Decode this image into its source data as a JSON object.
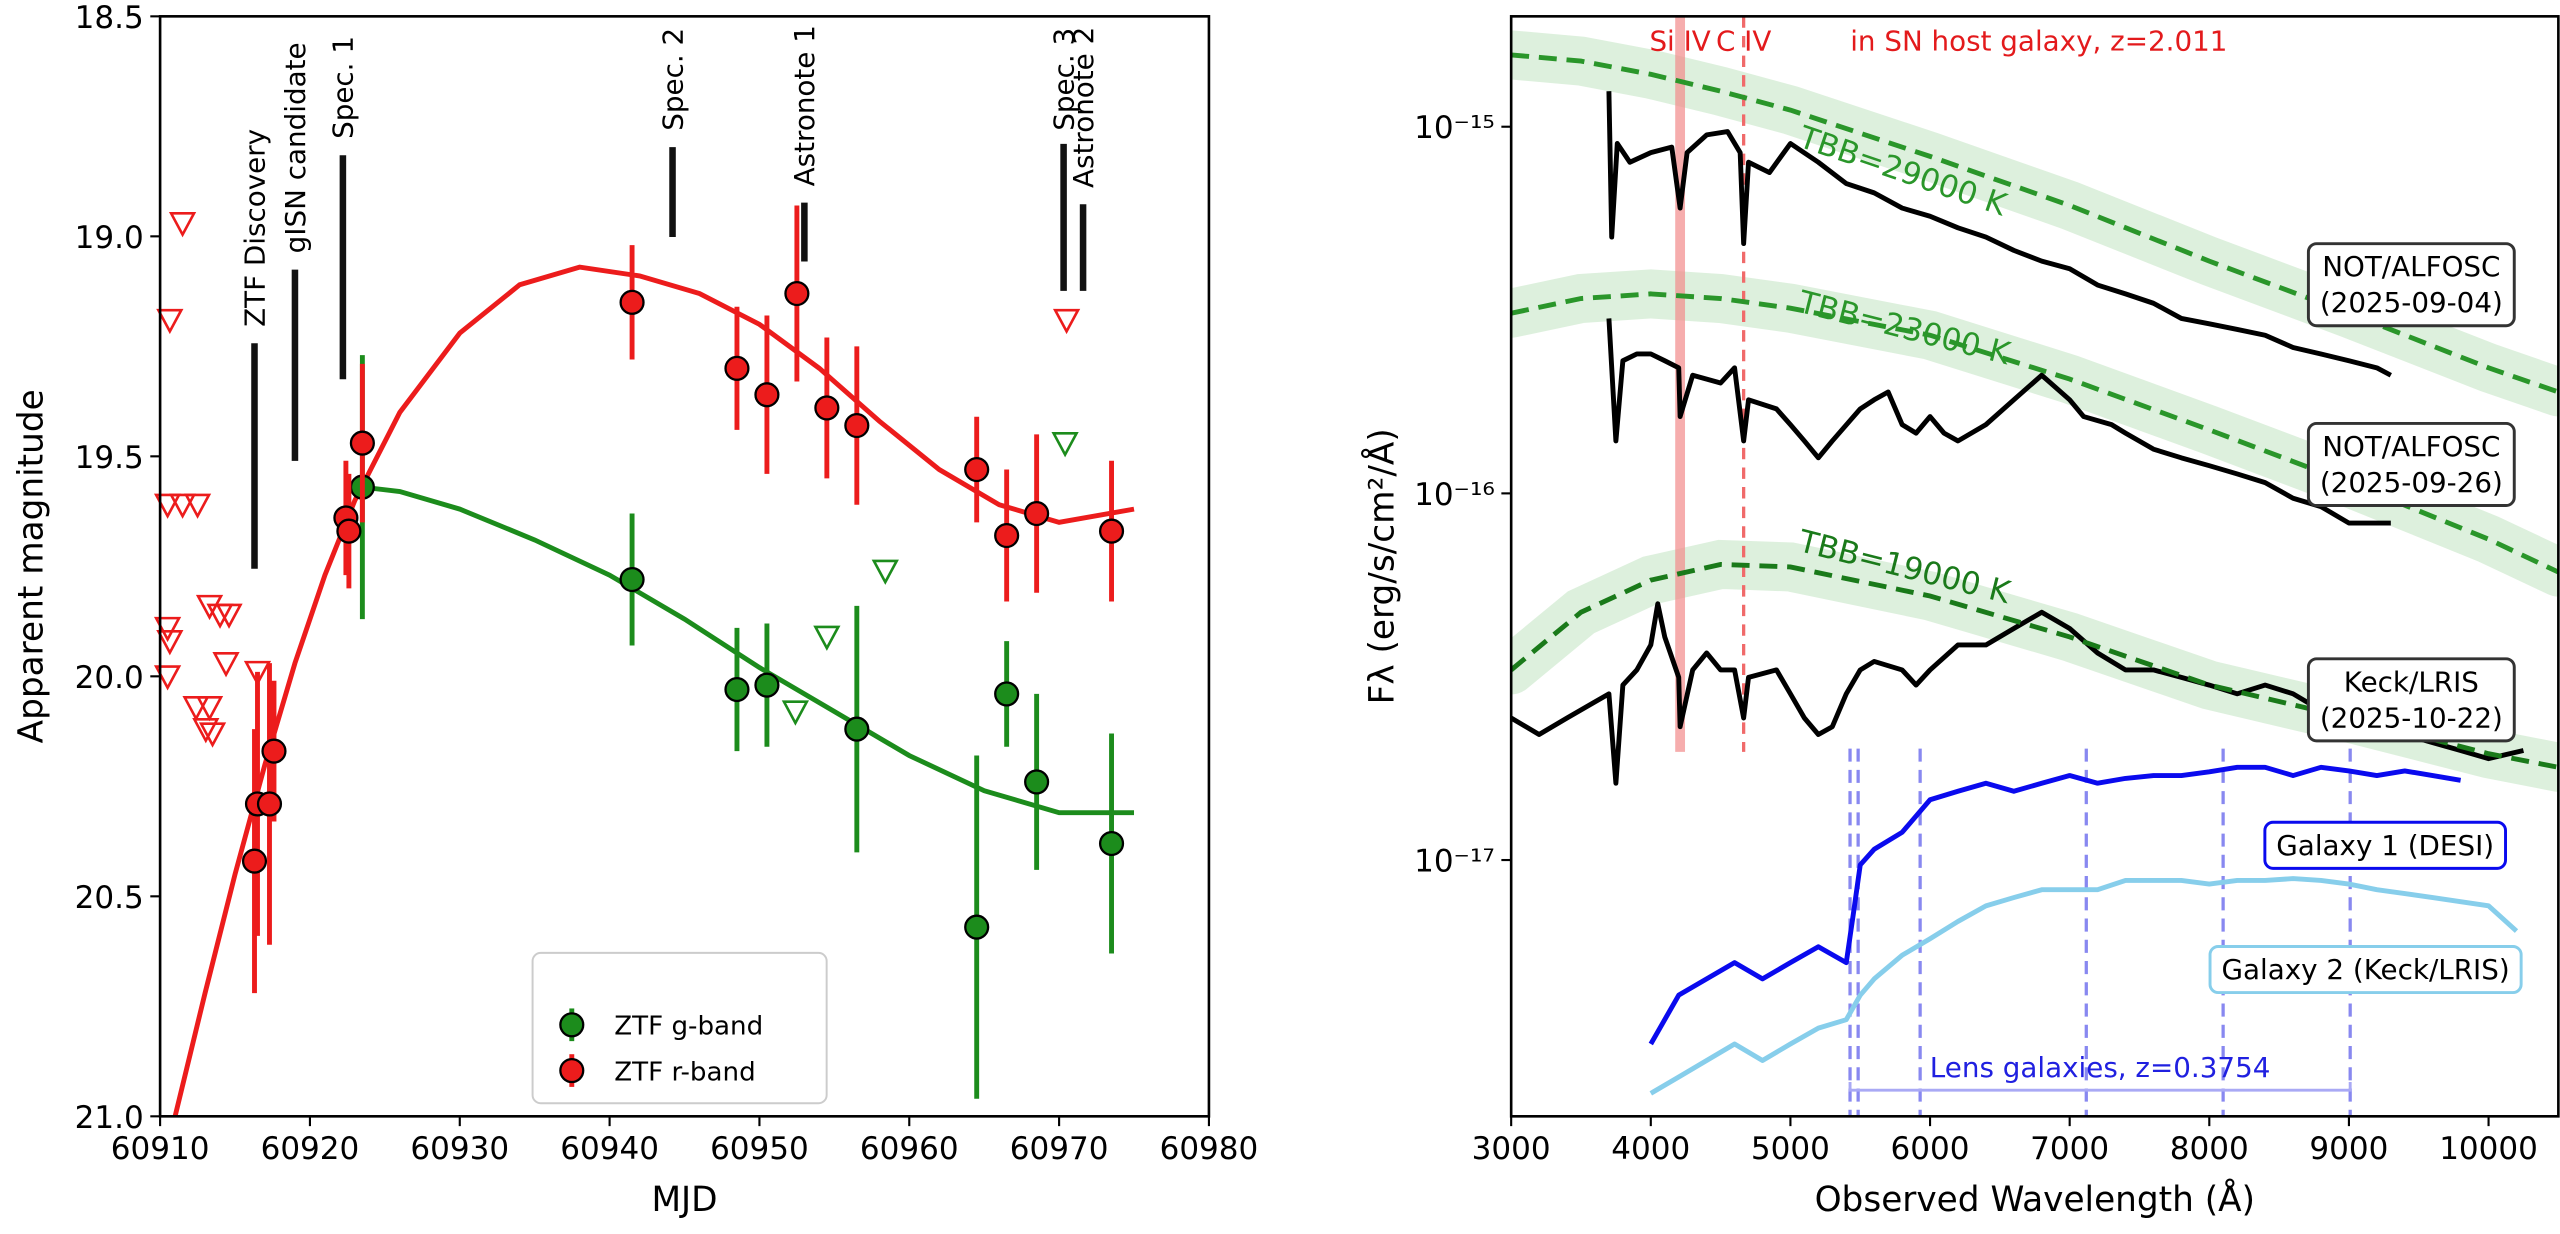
{
  "chart_data": [
    {
      "type": "scatter",
      "xlabel": "MJD",
      "ylabel": "Apparent magnitude",
      "xlim": [
        60910,
        60980
      ],
      "ylim": [
        21,
        18.5
      ],
      "xticks": [
        60910,
        60920,
        60930,
        60940,
        60950,
        60960,
        60970,
        60980
      ],
      "yticks": [
        18.5,
        {
          "value": 19,
          "label": "19.0"
        },
        19.5,
        {
          "value": 20,
          "label": "20.0"
        },
        20.5,
        {
          "value": 21,
          "label": "21.0"
        }
      ],
      "legend": "lower center",
      "series": [
        {
          "name": "ZTF g-band",
          "color": "#1c8c1c",
          "x": [
            60923.5,
            60941.5,
            60948.5,
            60950.5,
            60956.5,
            60964.5,
            60966.5,
            60968.5,
            60973.5
          ],
          "values": [
            19.57,
            19.78,
            20.03,
            20.02,
            20.12,
            20.57,
            20.04,
            20.24,
            20.38
          ],
          "errors": [
            0.3,
            0.15,
            0.14,
            0.14,
            0.28,
            0.39,
            0.12,
            0.2,
            0.25
          ]
        },
        {
          "name": "ZTF r-band",
          "color": "#ec1c1c",
          "x": [
            60916.3,
            60916.5,
            60917.3,
            60917.6,
            60922.4,
            60922.6,
            60923.5,
            60941.5,
            60948.5,
            60950.5,
            60952.5,
            60954.5,
            60956.5,
            60964.5,
            60966.5,
            60968.5,
            60973.5
          ],
          "values": [
            20.42,
            20.29,
            20.29,
            20.17,
            19.64,
            19.67,
            19.47,
            19.15,
            19.3,
            19.36,
            19.13,
            19.39,
            19.43,
            19.53,
            19.68,
            19.63,
            19.67
          ],
          "errors": [
            0.3,
            0.3,
            0.32,
            0.16,
            0.13,
            0.13,
            0.18,
            0.13,
            0.14,
            0.18,
            0.2,
            0.16,
            0.18,
            0.12,
            0.15,
            0.18,
            0.16
          ]
        }
      ],
      "upper_limits": [
        {
          "color": "#1c8c1c",
          "x": [
            60952.4,
            60954.5,
            60958.4,
            60970.4
          ],
          "values": [
            20.08,
            19.91,
            19.76,
            19.47
          ]
        },
        {
          "color": "#ec1c1c",
          "x": [
            60910.65,
            60911.5,
            60910.5,
            60911.5,
            60912.5,
            60910.5,
            60910.65,
            60910.5,
            60913.3,
            60914.0,
            60914.6,
            60914.4,
            60912.4,
            60913.05,
            60913.3,
            60913.5,
            60916.5,
            60970.5
          ],
          "values": [
            19.19,
            18.97,
            19.61,
            19.61,
            19.61,
            19.89,
            19.92,
            20.0,
            19.84,
            19.86,
            19.86,
            19.97,
            20.07,
            20.12,
            20.07,
            20.13,
            19.99,
            19.19
          ]
        }
      ],
      "fits": [
        {
          "color": "#1c8c1c",
          "x": [
            60923.5,
            60926,
            60930,
            60935,
            60940,
            60945,
            60950,
            60955,
            60960,
            60965,
            60970,
            60975
          ],
          "values": [
            19.57,
            19.58,
            19.62,
            19.69,
            19.77,
            19.87,
            19.98,
            20.08,
            20.18,
            20.26,
            20.31,
            20.31
          ]
        },
        {
          "color": "#ec1c1c",
          "x": [
            60911,
            60913,
            60915,
            60917,
            60919,
            60921,
            60923,
            60926,
            60930,
            60934,
            60938,
            60942,
            60946,
            60950,
            60954,
            60958,
            60962,
            60966,
            60970,
            60975
          ],
          "values": [
            21,
            20.72,
            20.45,
            20.2,
            19.97,
            19.77,
            19.6,
            19.4,
            19.22,
            19.11,
            19.07,
            19.09,
            19.13,
            19.2,
            19.3,
            19.42,
            19.53,
            19.61,
            19.65,
            19.62
          ]
        }
      ],
      "annotations": [
        {
          "text": "ZTF Discovery",
          "x": 60916.3
        },
        {
          "text": "gISN candidate",
          "x": 60919
        },
        {
          "text": "Spec. 1",
          "x": 60922.2
        },
        {
          "text": "Spec. 2",
          "x": 60944.2
        },
        {
          "text": "Astronote 1",
          "x": 60953
        },
        {
          "text": "Spec. 3",
          "x": 60970.3
        },
        {
          "text": "Astronote 2",
          "x": 60971.6
        }
      ]
    },
    {
      "type": "line",
      "xlabel": "Observed Wavelength (Å)",
      "ylabel": "Fλ (erg/s/cm²/Å)",
      "xlim": [
        3000,
        10500
      ],
      "ylim": [
        2e-18,
        2e-15
      ],
      "log_y": true,
      "xticks": [
        3000,
        4000,
        5000,
        6000,
        7000,
        8000,
        9000,
        10000
      ],
      "yticks": [
        {
          "value": 1e-17,
          "label": "10⁻¹⁷"
        },
        {
          "value": 1e-16,
          "label": "10⁻¹⁶"
        },
        {
          "value": 1e-15,
          "label": "10⁻¹⁵"
        }
      ],
      "series": [
        {
          "label": [
            "NOT/ALFOSC",
            "(2025-09-04)"
          ],
          "color": "#000000",
          "x": [
            3700,
            3720,
            3760,
            3850,
            4000,
            4150,
            4210,
            4260,
            4400,
            4550,
            4640,
            4665,
            4700,
            4850,
            5000,
            5200,
            5400,
            5600,
            5800,
            6000,
            6200,
            6400,
            6600,
            6800,
            7000,
            7200,
            7400,
            7600,
            7800,
            8000,
            8200,
            8400,
            8600,
            8800,
            9000,
            9200,
            9300
          ],
          "values": [
            1.25e-15,
            5e-16,
            9e-16,
            8e-16,
            8.5e-16,
            8.8e-16,
            6e-16,
            8.5e-16,
            9.5e-16,
            9.7e-16,
            8.5e-16,
            4.8e-16,
            8e-16,
            7.5e-16,
            9e-16,
            8e-16,
            7e-16,
            6.6e-16,
            6e-16,
            5.7e-16,
            5.3e-16,
            5e-16,
            4.6e-16,
            4.3e-16,
            4.1e-16,
            3.7e-16,
            3.5e-16,
            3.3e-16,
            3e-16,
            2.9e-16,
            2.8e-16,
            2.7e-16,
            2.5e-16,
            2.4e-16,
            2.3e-16,
            2.2e-16,
            2.1e-16
          ]
        },
        {
          "label": [
            "NOT/ALFOSC",
            "(2025-09-26)"
          ],
          "color": "#000000",
          "x": [
            3700,
            3750,
            3800,
            3900,
            4000,
            4100,
            4200,
            4210,
            4300,
            4500,
            4600,
            4665,
            4700,
            4900,
            5000,
            5100,
            5200,
            5300,
            5500,
            5600,
            5700,
            5800,
            5900,
            6000,
            6100,
            6200,
            6400,
            6600,
            6800,
            7000,
            7100,
            7300,
            7400,
            7600,
            7800,
            8000,
            8200,
            8400,
            8600,
            8800,
            9000,
            9300
          ],
          "values": [
            3e-16,
            1.39e-16,
            2.3e-16,
            2.4e-16,
            2.4e-16,
            2.3e-16,
            2.2e-16,
            1.62e-16,
            2.1e-16,
            2e-16,
            2.2e-16,
            1.39e-16,
            1.8e-16,
            1.7e-16,
            1.54e-16,
            1.39e-16,
            1.25e-16,
            1.39e-16,
            1.7e-16,
            1.8e-16,
            1.89e-16,
            1.54e-16,
            1.46e-16,
            1.62e-16,
            1.46e-16,
            1.39e-16,
            1.54e-16,
            1.8e-16,
            2.1e-16,
            1.8e-16,
            1.62e-16,
            1.54e-16,
            1.46e-16,
            1.32e-16,
            1.25e-16,
            1.19e-16,
            1.13e-16,
            1.07e-16,
            9.7e-17,
            9.2e-17,
            8.3e-17,
            8.3e-17
          ]
        },
        {
          "label": [
            "Keck/LRIS",
            "(2025-10-22)"
          ],
          "color": "#000000",
          "x": [
            3000,
            3200,
            3400,
            3600,
            3700,
            3750,
            3800,
            3900,
            4000,
            4050,
            4100,
            4200,
            4210,
            4300,
            4400,
            4500,
            4600,
            4665,
            4700,
            4900,
            5000,
            5100,
            5200,
            5300,
            5400,
            5500,
            5600,
            5800,
            5900,
            6000,
            6200,
            6400,
            6600,
            6800,
            7000,
            7200,
            7400,
            7600,
            7800,
            8000,
            8200,
            8400,
            8600,
            8800,
            9000,
            9200,
            9400,
            9600,
            9800,
            10000,
            10250
          ],
          "values": [
            2.44e-17,
            2.2e-17,
            2.44e-17,
            2.7e-17,
            2.84e-17,
            1.62e-17,
            3e-17,
            3.3e-17,
            3.86e-17,
            5e-17,
            4.06e-17,
            3.15e-17,
            2.31e-17,
            3.3e-17,
            3.67e-17,
            3.3e-17,
            3.3e-17,
            2.44e-17,
            3.15e-17,
            3.3e-17,
            2.84e-17,
            2.44e-17,
            2.2e-17,
            2.31e-17,
            2.84e-17,
            3.3e-17,
            3.48e-17,
            3.3e-17,
            3e-17,
            3.3e-17,
            3.86e-17,
            3.86e-17,
            4.28e-17,
            4.74e-17,
            4.28e-17,
            3.67e-17,
            3.3e-17,
            3.3e-17,
            3.15e-17,
            3e-17,
            2.84e-17,
            3e-17,
            2.84e-17,
            2.56e-17,
            2.44e-17,
            2.31e-17,
            2.2e-17,
            2.09e-17,
            1.99e-17,
            1.89e-17,
            1.99e-17
          ]
        },
        {
          "label": [
            "Galaxy 1 (DESI)"
          ],
          "color": "#0a0aee",
          "x": [
            4000,
            4200,
            4400,
            4600,
            4800,
            5000,
            5200,
            5400,
            5450,
            5500,
            5600,
            5800,
            6000,
            6200,
            6400,
            6600,
            6800,
            7000,
            7200,
            7400,
            7600,
            7800,
            8000,
            8200,
            8400,
            8600,
            8800,
            9000,
            9200,
            9400,
            9600,
            9800
          ],
          "values": [
            3.15e-18,
            4.28e-18,
            4.74e-18,
            5.25e-18,
            4.74e-18,
            5.25e-18,
            5.8e-18,
            5.25e-18,
            7.1e-18,
            9.7e-18,
            1.07e-17,
            1.19e-17,
            1.46e-17,
            1.54e-17,
            1.62e-17,
            1.54e-17,
            1.62e-17,
            1.7e-17,
            1.62e-17,
            1.67e-17,
            1.7e-17,
            1.7e-17,
            1.74e-17,
            1.79e-17,
            1.79e-17,
            1.7e-17,
            1.79e-17,
            1.75e-17,
            1.7e-17,
            1.75e-17,
            1.7e-17,
            1.65e-17
          ]
        },
        {
          "label": [
            "Galaxy 2 (Keck/LRIS)"
          ],
          "color": "#87ceeb",
          "x": [
            4000,
            4200,
            4400,
            4600,
            4800,
            5000,
            5200,
            5400,
            5500,
            5600,
            5800,
            6000,
            6200,
            6400,
            6600,
            6800,
            7000,
            7200,
            7400,
            7600,
            7800,
            8000,
            8200,
            8400,
            8600,
            8800,
            9000,
            9200,
            9400,
            9600,
            9800,
            10000,
            10200
          ],
          "values": [
            2.31e-18,
            2.56e-18,
            2.84e-18,
            3.15e-18,
            2.84e-18,
            3.15e-18,
            3.48e-18,
            3.67e-18,
            4.28e-18,
            4.74e-18,
            5.5e-18,
            6.1e-18,
            6.8e-18,
            7.5e-18,
            7.9e-18,
            8.3e-18,
            8.3e-18,
            8.3e-18,
            8.8e-18,
            8.8e-18,
            8.8e-18,
            8.6e-18,
            8.8e-18,
            8.8e-18,
            8.9e-18,
            8.8e-18,
            8.6e-18,
            8.3e-18,
            8.1e-18,
            7.9e-18,
            7.7e-18,
            7.5e-18,
            6.4e-18
          ]
        }
      ],
      "blackbody": [
        {
          "label": "TBB=29000 K",
          "color": "#2a962a",
          "x": [
            3000,
            3500,
            4000,
            4500,
            5000,
            6000,
            7000,
            8000,
            9000,
            10000,
            10500
          ],
          "values": [
            1.57e-15,
            1.51e-15,
            1.39e-15,
            1.25e-15,
            1.11e-15,
            8.3e-16,
            6.1e-16,
            4.3e-16,
            3.1e-16,
            2.2e-16,
            1.89e-16
          ]
        },
        {
          "label": "TBB=23000 K",
          "color": "#2a962a",
          "x": [
            3000,
            3500,
            4000,
            4500,
            5000,
            6000,
            7000,
            8000,
            9000,
            10000,
            10500
          ],
          "values": [
            3.1e-16,
            3.4e-16,
            3.5e-16,
            3.4e-16,
            3.2e-16,
            2.7e-16,
            2.05e-16,
            1.49e-16,
            1.07e-16,
            7.5e-17,
            6.1e-17
          ]
        },
        {
          "label": "TBB=19000 K",
          "color": "#1a7a1a",
          "x": [
            3000,
            3500,
            4000,
            4500,
            5000,
            6000,
            7000,
            8000,
            9000,
            10000,
            10500
          ],
          "values": [
            3.3e-17,
            4.74e-17,
            5.8e-17,
            6.4e-17,
            6.3e-17,
            5.25e-17,
            4.06e-17,
            3e-17,
            2.44e-17,
            1.95e-17,
            1.79e-17
          ]
        }
      ],
      "lines": [
        {
          "label": "Si IV",
          "x": 4210,
          "color": "#f28a8a",
          "dashed": false
        },
        {
          "label": "C IV",
          "x": 4665,
          "color": "#f06a6a",
          "dashed": true
        }
      ],
      "lines_note": "in SN host galaxy, z=2.011",
      "lens": {
        "label": "Lens galaxies, z=0.3754",
        "color": "#8888f0",
        "text_color": "#2020e0",
        "x": [
          5427,
          5485,
          5929,
          7119,
          8099,
          9009
        ]
      }
    }
  ]
}
